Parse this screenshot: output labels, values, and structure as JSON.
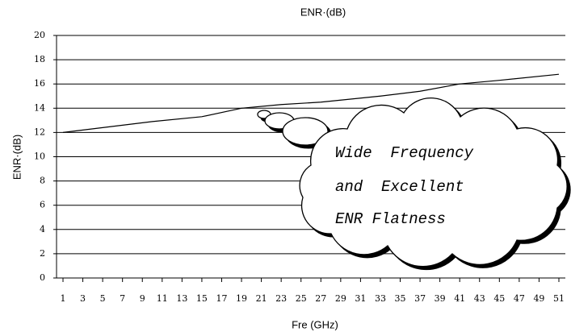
{
  "chart_data": {
    "type": "line",
    "title": "ENR·(dB)",
    "x_label": "Fre (GHz)",
    "y_label": "ENR·(dB)",
    "x": [
      1,
      5,
      10,
      15,
      19,
      23,
      27,
      33,
      37,
      41,
      45,
      51
    ],
    "values": [
      12,
      12.4,
      12.9,
      13.3,
      14,
      14.3,
      14.5,
      15,
      15.4,
      16,
      16.3,
      16.8
    ],
    "color": "#000000",
    "xlim": [
      1,
      51
    ],
    "xticks": [
      1,
      3,
      5,
      7,
      9,
      11,
      13,
      15,
      17,
      19,
      21,
      23,
      25,
      27,
      29,
      31,
      33,
      35,
      37,
      39,
      41,
      43,
      45,
      47,
      49,
      51
    ],
    "ylim": [
      0,
      20
    ],
    "yticks": [
      0,
      2,
      4,
      6,
      8,
      10,
      12,
      14,
      16,
      18,
      20
    ],
    "grid": true,
    "annotation": [
      "Wide  Frequency",
      "and  Excellent",
      "ENR Flatness"
    ]
  }
}
